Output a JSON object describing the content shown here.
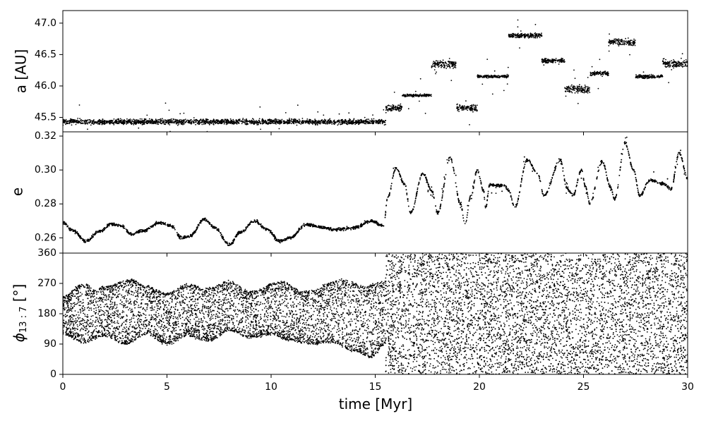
{
  "chart_data": [
    {
      "type": "scatter",
      "panel": "top",
      "ylabel": "a [AU]",
      "xlim": [
        0,
        30
      ],
      "ylim": [
        45.27,
        47.2
      ],
      "yticks": [
        "45.5",
        "46.0",
        "46.5",
        "47.0"
      ],
      "ytick_values": [
        45.5,
        46.0,
        46.5,
        47.0
      ],
      "marker_color": "#000000",
      "series": [
        {
          "segments": [
            {
              "x0": 0.0,
              "x1": 15.5,
              "center": 45.43,
              "spread": 0.06
            },
            {
              "x0": 15.5,
              "x1": 16.3,
              "center": 45.65,
              "spread": 0.08
            },
            {
              "x0": 16.3,
              "x1": 17.7,
              "center": 45.85,
              "spread": 0.03
            },
            {
              "x0": 17.7,
              "x1": 18.9,
              "center": 46.35,
              "spread": 0.1
            },
            {
              "x0": 18.9,
              "x1": 19.9,
              "center": 45.65,
              "spread": 0.08
            },
            {
              "x0": 19.9,
              "x1": 21.4,
              "center": 46.15,
              "spread": 0.03
            },
            {
              "x0": 21.4,
              "x1": 23.0,
              "center": 46.8,
              "spread": 0.05
            },
            {
              "x0": 23.0,
              "x1": 24.1,
              "center": 46.4,
              "spread": 0.05
            },
            {
              "x0": 24.1,
              "x1": 25.3,
              "center": 45.95,
              "spread": 0.1
            },
            {
              "x0": 25.3,
              "x1": 26.2,
              "center": 46.2,
              "spread": 0.05
            },
            {
              "x0": 26.2,
              "x1": 27.5,
              "center": 46.7,
              "spread": 0.08
            },
            {
              "x0": 27.5,
              "x1": 28.8,
              "center": 46.15,
              "spread": 0.04
            },
            {
              "x0": 28.8,
              "x1": 30.0,
              "center": 46.35,
              "spread": 0.1
            }
          ]
        }
      ]
    },
    {
      "type": "scatter",
      "panel": "middle",
      "ylabel": "e",
      "xlim": [
        0,
        30
      ],
      "ylim": [
        0.251,
        0.3225
      ],
      "yticks": [
        "0.26",
        "0.28",
        "0.30",
        "0.32"
      ],
      "ytick_values": [
        0.26,
        0.28,
        0.3,
        0.32
      ],
      "marker_color": "#000000",
      "series": [
        {
          "points": [
            [
              0,
              0.269
            ],
            [
              0.5,
              0.264
            ],
            [
              1.1,
              0.258
            ],
            [
              1.8,
              0.264
            ],
            [
              2.3,
              0.268
            ],
            [
              2.8,
              0.267
            ],
            [
              3.3,
              0.262
            ],
            [
              3.8,
              0.264
            ],
            [
              4.7,
              0.269
            ],
            [
              5.2,
              0.267
            ],
            [
              5.7,
              0.26
            ],
            [
              6.1,
              0.261
            ],
            [
              6.8,
              0.271
            ],
            [
              7.3,
              0.266
            ],
            [
              8.0,
              0.256
            ],
            [
              8.5,
              0.263
            ],
            [
              9.2,
              0.27
            ],
            [
              9.8,
              0.265
            ],
            [
              10.4,
              0.258
            ],
            [
              10.9,
              0.26
            ],
            [
              11.7,
              0.268
            ],
            [
              12.5,
              0.266
            ],
            [
              13.1,
              0.265
            ],
            [
              14.0,
              0.266
            ],
            [
              14.8,
              0.27
            ],
            [
              15.4,
              0.267
            ],
            [
              15.6,
              0.284
            ],
            [
              16.0,
              0.301
            ],
            [
              16.4,
              0.292
            ],
            [
              16.7,
              0.275
            ],
            [
              17.3,
              0.298
            ],
            [
              17.7,
              0.288
            ],
            [
              18.0,
              0.275
            ],
            [
              18.6,
              0.307
            ],
            [
              19.1,
              0.28
            ],
            [
              19.3,
              0.268
            ],
            [
              19.6,
              0.285
            ],
            [
              19.9,
              0.3
            ],
            [
              20.2,
              0.288
            ],
            [
              20.3,
              0.278
            ],
            [
              20.5,
              0.291
            ],
            [
              21.2,
              0.291
            ],
            [
              21.4,
              0.288
            ],
            [
              21.7,
              0.278
            ],
            [
              22.3,
              0.306
            ],
            [
              22.8,
              0.298
            ],
            [
              23.1,
              0.285
            ],
            [
              23.9,
              0.306
            ],
            [
              24.2,
              0.289
            ],
            [
              24.5,
              0.285
            ],
            [
              24.9,
              0.3
            ],
            [
              25.1,
              0.29
            ],
            [
              25.3,
              0.28
            ],
            [
              25.9,
              0.305
            ],
            [
              26.3,
              0.29
            ],
            [
              26.5,
              0.283
            ],
            [
              27.0,
              0.316
            ],
            [
              27.4,
              0.3
            ],
            [
              27.7,
              0.285
            ],
            [
              28.2,
              0.294
            ],
            [
              28.8,
              0.292
            ],
            [
              29.2,
              0.289
            ],
            [
              29.6,
              0.31
            ],
            [
              30.0,
              0.295
            ]
          ]
        }
      ]
    },
    {
      "type": "scatter",
      "panel": "bottom",
      "ylabel": "ϕ13:7 [°]",
      "ylabel_main": "ϕ",
      "ylabel_sub": "13 : 7",
      "ylabel_unit": " [°]",
      "xlabel": "time [Myr]",
      "xlim": [
        0,
        30
      ],
      "ylim": [
        0,
        360
      ],
      "yticks": [
        "0",
        "90",
        "180",
        "270",
        "360"
      ],
      "ytick_values": [
        0,
        90,
        180,
        270,
        360
      ],
      "xticks": [
        "0",
        "5",
        "10",
        "15",
        "20",
        "25",
        "30"
      ],
      "xtick_values": [
        0,
        5,
        10,
        15,
        20,
        25,
        30
      ],
      "marker_color": "#000000",
      "series": [
        {
          "libration_until": 15.5,
          "upper_envelope": [
            [
              0,
              230
            ],
            [
              1.0,
              270
            ],
            [
              1.5,
              250
            ],
            [
              2.0,
              260
            ],
            [
              3.3,
              280
            ],
            [
              4.0,
              260
            ],
            [
              5.0,
              240
            ],
            [
              6.0,
              265
            ],
            [
              7.0,
              255
            ],
            [
              8.0,
              275
            ],
            [
              9.0,
              245
            ],
            [
              10.5,
              275
            ],
            [
              11.5,
              245
            ],
            [
              13.5,
              280
            ],
            [
              14.5,
              260
            ],
            [
              15.5,
              275
            ]
          ],
          "lower_envelope": [
            [
              0,
              120
            ],
            [
              1.0,
              95
            ],
            [
              2.0,
              115
            ],
            [
              3.0,
              90
            ],
            [
              4.0,
              120
            ],
            [
              5.0,
              90
            ],
            [
              6.0,
              115
            ],
            [
              7.0,
              100
            ],
            [
              8.0,
              130
            ],
            [
              9.0,
              110
            ],
            [
              10.0,
              120
            ],
            [
              11.0,
              100
            ],
            [
              12.0,
              90
            ],
            [
              13.0,
              95
            ],
            [
              14.0,
              70
            ],
            [
              14.8,
              50
            ],
            [
              15.5,
              90
            ]
          ],
          "circulation_from": 15.5,
          "circulation_range": [
            0,
            360
          ]
        }
      ]
    }
  ]
}
